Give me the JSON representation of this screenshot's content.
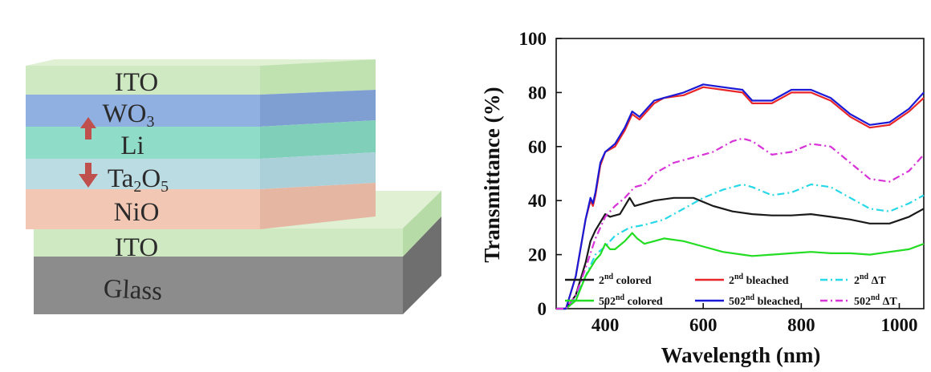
{
  "stack": {
    "layers": [
      {
        "label": "ITO",
        "color": "#cfe9c2"
      },
      {
        "label": "WO3",
        "base": "WO",
        "sub": "3",
        "color": "#8fb0e0"
      },
      {
        "label": "Li",
        "color": "#8fdcc8"
      },
      {
        "label": "Ta2O5",
        "color": "#bcdce4"
      },
      {
        "label": "NiO",
        "color": "#f2c8b4"
      },
      {
        "label": "ITO",
        "color": "#cfe9c2"
      },
      {
        "label": "Glass",
        "color": "#8c8c8c"
      }
    ],
    "arrow_color": "#c0504d"
  },
  "chart_data": {
    "type": "line",
    "xlabel": "Wavelength (nm)",
    "ylabel": "Transmittance (%)",
    "xlim": [
      300,
      1050
    ],
    "ylim": [
      0,
      100
    ],
    "xticks": [
      400,
      600,
      800,
      1000
    ],
    "yticks": [
      0,
      20,
      40,
      60,
      80,
      100
    ],
    "legend_position": "bottom",
    "series": [
      {
        "name": "2nd colored",
        "nbase": "2",
        "nsup": "nd",
        "ntail": " colored",
        "color": "#1a1a1a",
        "style": "solid",
        "x": [
          300,
          320,
          340,
          360,
          370,
          380,
          390,
          400,
          410,
          430,
          450,
          460,
          480,
          500,
          540,
          580,
          620,
          660,
          700,
          740,
          780,
          820,
          860,
          900,
          940,
          980,
          1020,
          1050
        ],
        "y": [
          0,
          0,
          5,
          17,
          25,
          29,
          32,
          35,
          34,
          35,
          41,
          38,
          39,
          40,
          41,
          41,
          38,
          36,
          35,
          34.5,
          34.5,
          35,
          34,
          33,
          31.5,
          31.5,
          34,
          37
        ]
      },
      {
        "name": "2nd bleached",
        "nbase": "2",
        "nsup": "nd",
        "ntail": " bleached",
        "color": "#e8262a",
        "style": "solid",
        "x": [
          300,
          320,
          340,
          360,
          370,
          375,
          380,
          390,
          400,
          420,
          440,
          455,
          470,
          500,
          520,
          560,
          600,
          640,
          680,
          700,
          740,
          780,
          820,
          860,
          900,
          940,
          980,
          1020,
          1050
        ],
        "y": [
          0,
          0,
          12,
          33,
          40,
          38,
          42,
          53,
          58,
          60,
          66,
          72,
          70,
          76,
          78,
          79,
          82,
          81,
          80,
          76,
          76,
          80,
          80,
          77,
          71,
          67,
          68,
          73,
          78
        ]
      },
      {
        "name": "2nd ΔT",
        "nbase": "2",
        "nsup": "nd",
        "ntail": " ΔT",
        "color": "#27d8e8",
        "style": "dashdot",
        "x": [
          300,
          320,
          340,
          360,
          380,
          400,
          420,
          450,
          480,
          520,
          560,
          600,
          640,
          680,
          700,
          740,
          780,
          820,
          860,
          900,
          940,
          980,
          1020,
          1050
        ],
        "y": [
          0,
          0,
          4,
          12,
          20,
          23,
          27,
          30,
          31,
          33,
          37,
          41,
          44,
          46,
          45,
          42,
          43,
          46,
          45,
          41,
          37,
          36,
          39,
          42
        ]
      },
      {
        "name": "502nd colored",
        "nbase": "502",
        "nsup": "nd",
        "ntail": " colored",
        "color": "#22dd22",
        "style": "solid",
        "x": [
          300,
          320,
          340,
          360,
          380,
          390,
          400,
          410,
          420,
          440,
          455,
          465,
          480,
          500,
          520,
          560,
          600,
          640,
          680,
          700,
          740,
          780,
          820,
          860,
          900,
          940,
          980,
          1020,
          1050
        ],
        "y": [
          0,
          0,
          3,
          12,
          18,
          20,
          24,
          22,
          22,
          25,
          28,
          26,
          24,
          25,
          26,
          25,
          23,
          21,
          20,
          19.5,
          20,
          20.5,
          21,
          20.5,
          20.5,
          20,
          21,
          22,
          24
        ]
      },
      {
        "name": "502nd bleached",
        "nbase": "502",
        "nsup": "nd",
        "ntail": " bleached",
        "color": "#1a1ad6",
        "style": "solid",
        "x": [
          300,
          320,
          340,
          360,
          370,
          375,
          380,
          390,
          400,
          420,
          440,
          455,
          470,
          500,
          520,
          560,
          600,
          640,
          680,
          700,
          740,
          780,
          820,
          860,
          900,
          940,
          980,
          1020,
          1050
        ],
        "y": [
          0,
          0,
          12,
          33,
          41,
          39,
          43,
          54,
          58,
          61,
          67,
          73,
          71,
          77,
          78,
          80,
          83,
          82,
          81,
          77,
          77,
          81,
          81,
          78,
          72,
          68,
          69,
          74,
          80
        ]
      },
      {
        "name": "502nd ΔT",
        "nbase": "502",
        "nsup": "nd",
        "ntail": " ΔT",
        "color": "#d832d8",
        "style": "dashdot",
        "x": [
          300,
          320,
          340,
          360,
          380,
          400,
          420,
          440,
          460,
          480,
          500,
          540,
          580,
          620,
          660,
          680,
          700,
          740,
          780,
          820,
          860,
          900,
          940,
          980,
          1020,
          1050
        ],
        "y": [
          0,
          0,
          5,
          15,
          26,
          34,
          38,
          41,
          45,
          46,
          50,
          54,
          56,
          58,
          62,
          63,
          62,
          57,
          58,
          61,
          60,
          54,
          48,
          47,
          51,
          57
        ]
      }
    ]
  }
}
